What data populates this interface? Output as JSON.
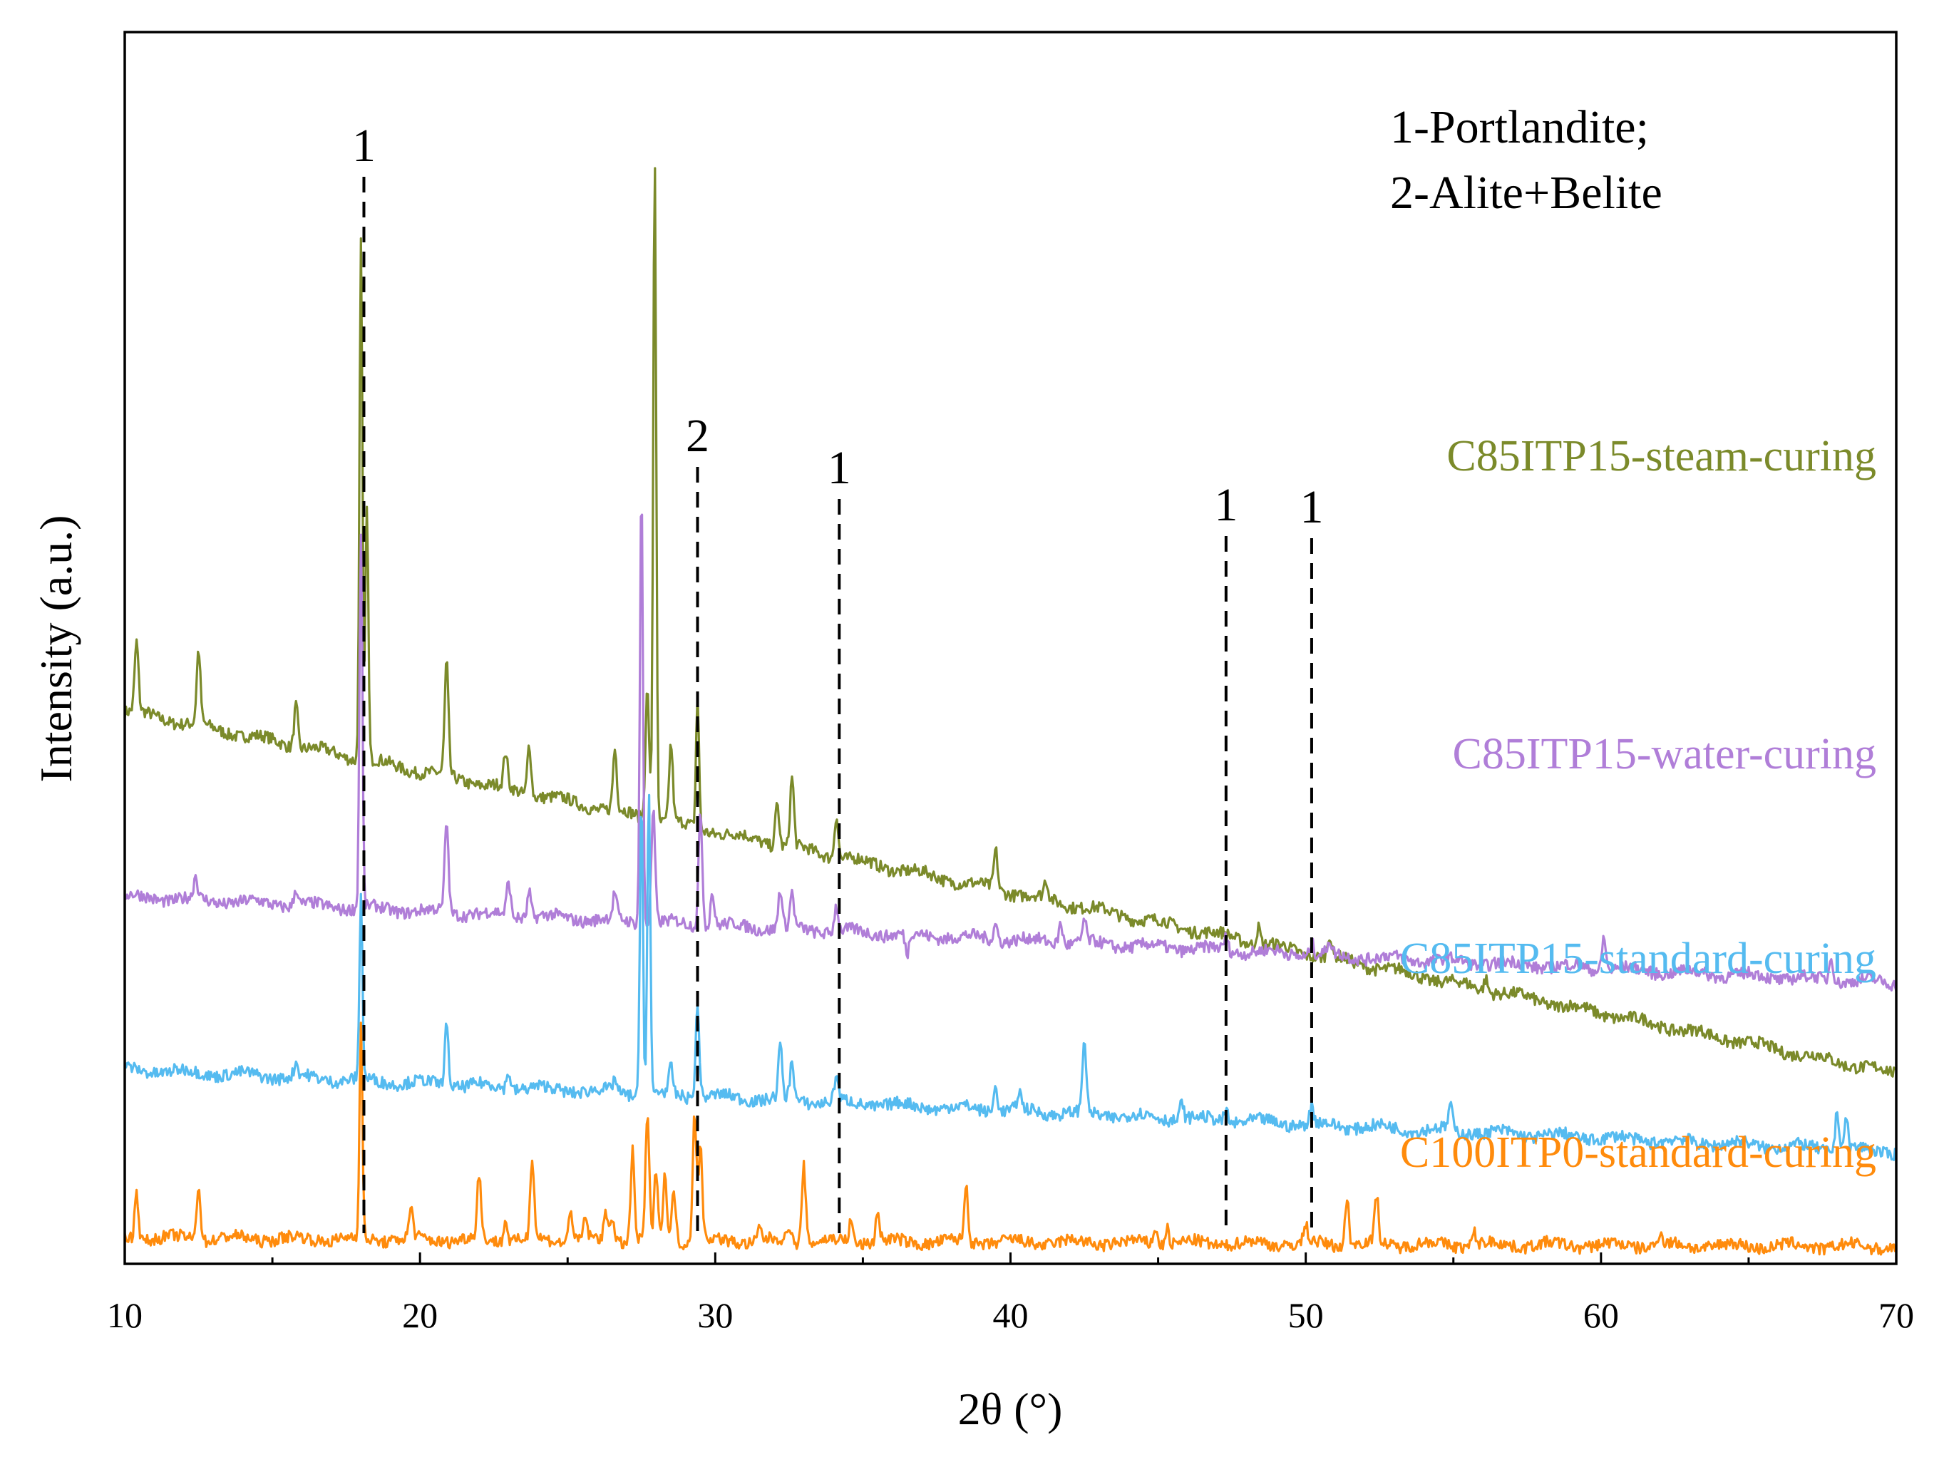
{
  "chart_data": {
    "type": "line",
    "xlabel": "2θ (°)",
    "ylabel": "Intensity (a.u.)",
    "xlim": [
      10,
      70
    ],
    "xticks": [
      10,
      20,
      30,
      40,
      50,
      60,
      70
    ],
    "y_ticks_shown": false,
    "legend_lines": [
      "1-Portlandite;",
      "2-Alite+Belite"
    ],
    "legend_position": "top-right",
    "reference_lines": [
      {
        "x": 18.1,
        "label": "1"
      },
      {
        "x": 29.4,
        "label": "2"
      },
      {
        "x": 34.2,
        "label": "1"
      },
      {
        "x": 47.3,
        "label": "1"
      },
      {
        "x": 50.2,
        "label": "1"
      }
    ],
    "series": [
      {
        "name": "C85ITP15-steam-curing",
        "color": "#7b8a2a",
        "baseline_start": 12.8,
        "baseline_end": 4.4,
        "peaks": [
          [
            10.4,
            1.6
          ],
          [
            12.5,
            1.7
          ],
          [
            15.8,
            1.0
          ],
          [
            18.0,
            12.0
          ],
          [
            18.2,
            6.0
          ],
          [
            20.9,
            2.6
          ],
          [
            22.9,
            0.8
          ],
          [
            23.7,
            1.2
          ],
          [
            26.6,
            1.4
          ],
          [
            27.7,
            3.0
          ],
          [
            27.95,
            15.5
          ],
          [
            28.5,
            1.8
          ],
          [
            29.4,
            3.1
          ],
          [
            32.1,
            1.0
          ],
          [
            32.6,
            1.6
          ],
          [
            34.1,
            1.0
          ],
          [
            39.5,
            0.9
          ],
          [
            41.2,
            0.4
          ],
          [
            48.4,
            0.4
          ],
          [
            50.8,
            0.5
          ],
          [
            56.1,
            0.3
          ]
        ]
      },
      {
        "name": "C85ITP15-water-curing",
        "color": "#b07ed8",
        "baseline_start": 8.5,
        "baseline_end": 6.5,
        "peaks": [
          [
            12.4,
            0.5
          ],
          [
            15.8,
            0.4
          ],
          [
            18.0,
            8.7
          ],
          [
            20.9,
            2.1
          ],
          [
            23.0,
            0.8
          ],
          [
            23.7,
            0.6
          ],
          [
            26.6,
            0.6
          ],
          [
            27.5,
            10.2
          ],
          [
            27.9,
            2.6
          ],
          [
            29.5,
            2.6
          ],
          [
            29.9,
            0.8
          ],
          [
            32.2,
            0.9
          ],
          [
            32.6,
            0.8
          ],
          [
            34.1,
            0.6
          ],
          [
            36.5,
            -0.5
          ],
          [
            39.5,
            0.4
          ],
          [
            41.7,
            0.5
          ],
          [
            42.5,
            0.5
          ],
          [
            47.3,
            0.3
          ],
          [
            50.2,
            0.3
          ],
          [
            50.8,
            0.3
          ],
          [
            60.1,
            0.8
          ],
          [
            67.8,
            0.6
          ]
        ]
      },
      {
        "name": "C85ITP15-standard-curing",
        "color": "#55bbf0",
        "baseline_start": 4.5,
        "baseline_end": 2.6,
        "peaks": [
          [
            15.8,
            0.3
          ],
          [
            18.0,
            4.3
          ],
          [
            20.9,
            1.4
          ],
          [
            23.0,
            0.4
          ],
          [
            26.6,
            0.3
          ],
          [
            27.5,
            7.0
          ],
          [
            27.75,
            7.0
          ],
          [
            28.5,
            0.6
          ],
          [
            29.4,
            2.1
          ],
          [
            32.2,
            1.2
          ],
          [
            32.6,
            0.9
          ],
          [
            34.1,
            0.6
          ],
          [
            39.5,
            0.6
          ],
          [
            40.3,
            0.4
          ],
          [
            42.5,
            1.7
          ],
          [
            45.8,
            0.4
          ],
          [
            47.3,
            0.3
          ],
          [
            50.2,
            0.4
          ],
          [
            54.9,
            0.6
          ],
          [
            68.0,
            0.9
          ],
          [
            68.3,
            0.7
          ]
        ]
      },
      {
        "name": "C100ITP0-standard-curing",
        "color": "#ff8b0c",
        "baseline_start": 0.6,
        "baseline_end": 0.4,
        "peaks": [
          [
            10.4,
            1.1
          ],
          [
            12.5,
            1.3
          ],
          [
            18.0,
            4.9
          ],
          [
            19.7,
            0.7
          ],
          [
            22.0,
            1.5
          ],
          [
            22.9,
            0.5
          ],
          [
            23.8,
            1.9
          ],
          [
            25.1,
            0.8
          ],
          [
            25.6,
            0.5
          ],
          [
            26.3,
            0.6
          ],
          [
            26.5,
            0.6
          ],
          [
            27.2,
            2.1
          ],
          [
            27.7,
            2.8
          ],
          [
            28.0,
            1.6
          ],
          [
            28.3,
            1.5
          ],
          [
            28.6,
            1.2
          ],
          [
            29.3,
            3.0
          ],
          [
            29.5,
            2.1
          ],
          [
            31.5,
            0.3
          ],
          [
            32.5,
            0.4
          ],
          [
            33.0,
            1.8
          ],
          [
            34.6,
            0.5
          ],
          [
            35.5,
            0.7
          ],
          [
            38.5,
            1.3
          ],
          [
            44.9,
            0.4
          ],
          [
            45.3,
            0.4
          ],
          [
            50.0,
            0.4
          ],
          [
            51.4,
            1.1
          ],
          [
            52.4,
            1.1
          ],
          [
            55.7,
            0.3
          ],
          [
            62.0,
            0.3
          ]
        ]
      }
    ]
  }
}
